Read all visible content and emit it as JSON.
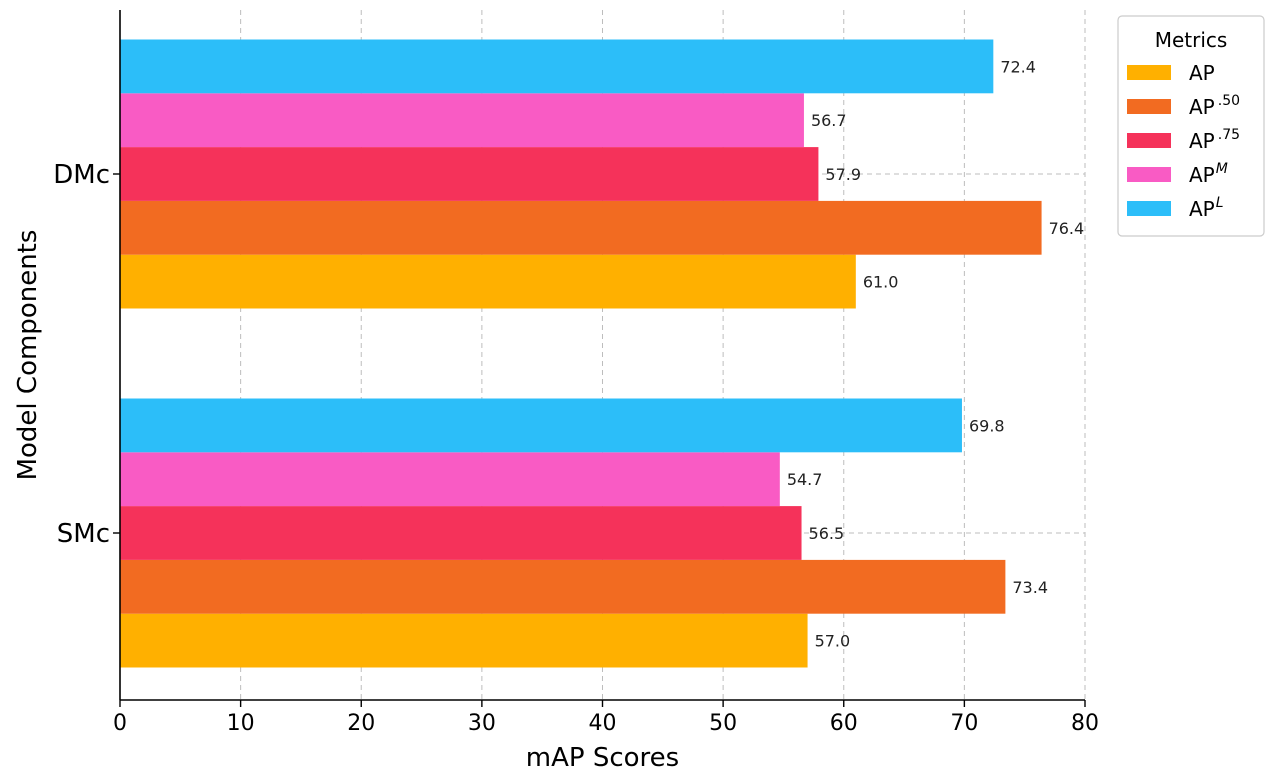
{
  "chart_data": {
    "type": "bar",
    "orientation": "horizontal",
    "title": "",
    "xlabel": "mAP Scores",
    "ylabel": "Model Components",
    "xlim": [
      0,
      80
    ],
    "xticks": [
      0,
      10,
      20,
      30,
      40,
      50,
      60,
      70,
      80
    ],
    "grid": true,
    "legend_title": "Metrics",
    "legend_position": "top-right",
    "categories": [
      "SMc",
      "DMc"
    ],
    "series": [
      {
        "name": "AP",
        "legend_base": "AP",
        "legend_sup": "",
        "color": "#FFB000",
        "values": [
          57.0,
          61.0
        ]
      },
      {
        "name": "AP.50",
        "legend_base": "AP",
        "legend_sup": ".50",
        "color": "#F26B21",
        "values": [
          73.4,
          76.4
        ]
      },
      {
        "name": "AP .75",
        "legend_base": "AP",
        "legend_sup": ".75",
        "color": "#F5325A",
        "values": [
          56.5,
          57.9
        ]
      },
      {
        "name": "APM",
        "legend_base": "AP",
        "legend_sup": "M",
        "color": "#F95BC4",
        "values": [
          54.7,
          56.7
        ]
      },
      {
        "name": "APL",
        "legend_base": "AP",
        "legend_sup": "L",
        "color": "#2CBEF9",
        "values": [
          69.8,
          72.4
        ]
      }
    ]
  }
}
